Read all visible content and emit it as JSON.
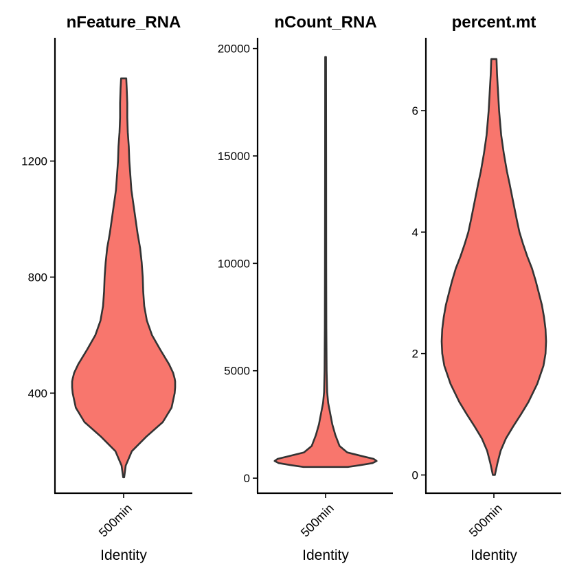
{
  "chart_data": [
    {
      "type": "violin",
      "title": "nFeature_RNA",
      "xlabel": "Identity",
      "ylabel": "",
      "categories": [
        "500min"
      ],
      "ylim": [
        55,
        1625
      ],
      "yticks": [
        400,
        800,
        1200
      ],
      "tick_labels": [
        "400",
        "800",
        "1200"
      ],
      "fill_color": "#F8766D",
      "outline_color": "#333333",
      "density": {
        "y": [
          110,
          150,
          200,
          250,
          300,
          350,
          400,
          420,
          440,
          450,
          470,
          500,
          550,
          600,
          650,
          700,
          750,
          800,
          850,
          900,
          950,
          1000,
          1050,
          1100,
          1150,
          1200,
          1250,
          1300,
          1350,
          1400,
          1450,
          1485
        ],
        "half_width": [
          0.01,
          0.04,
          0.16,
          0.44,
          0.76,
          0.93,
          0.99,
          1.0,
          1.0,
          0.99,
          0.96,
          0.88,
          0.71,
          0.55,
          0.45,
          0.4,
          0.38,
          0.37,
          0.35,
          0.32,
          0.27,
          0.23,
          0.19,
          0.15,
          0.13,
          0.11,
          0.1,
          0.08,
          0.07,
          0.07,
          0.06,
          0.05
        ]
      }
    },
    {
      "type": "violin",
      "title": "nCount_RNA",
      "xlabel": "Identity",
      "ylabel": "",
      "categories": [
        "500min"
      ],
      "ylim": [
        -700,
        20500
      ],
      "yticks": [
        0,
        5000,
        10000,
        15000,
        20000
      ],
      "tick_labels": [
        "0",
        "5000",
        "10000",
        "15000",
        "20000"
      ],
      "fill_color": "#F8766D",
      "outline_color": "#333333",
      "density": {
        "y": [
          520,
          600,
          700,
          800,
          900,
          1000,
          1200,
          1500,
          2000,
          2500,
          3000,
          3500,
          4000,
          5000,
          7000,
          10000,
          15000,
          19600
        ],
        "half_width": [
          0.43,
          0.66,
          0.91,
          0.99,
          0.93,
          0.75,
          0.42,
          0.27,
          0.19,
          0.13,
          0.09,
          0.05,
          0.03,
          0.02,
          0.015,
          0.012,
          0.01,
          0.008
        ]
      }
    },
    {
      "type": "violin",
      "title": "percent.mt",
      "xlabel": "Identity",
      "ylabel": "",
      "categories": [
        "500min"
      ],
      "ylim": [
        -0.3,
        7.2
      ],
      "yticks": [
        0,
        2,
        4,
        6
      ],
      "tick_labels": [
        "0",
        "2",
        "4",
        "6"
      ],
      "fill_color": "#F8766D",
      "outline_color": "#333333",
      "density": {
        "y": [
          0.0,
          0.2,
          0.4,
          0.6,
          0.8,
          1.0,
          1.2,
          1.5,
          1.8,
          2.0,
          2.2,
          2.4,
          2.6,
          2.8,
          3.0,
          3.2,
          3.4,
          3.6,
          3.8,
          4.0,
          4.2,
          4.5,
          4.8,
          5.0,
          5.3,
          5.6,
          6.0,
          6.3,
          6.6,
          6.85
        ],
        "half_width": [
          0.02,
          0.07,
          0.13,
          0.23,
          0.37,
          0.52,
          0.66,
          0.83,
          0.95,
          0.99,
          1.0,
          0.99,
          0.96,
          0.92,
          0.86,
          0.8,
          0.73,
          0.64,
          0.56,
          0.49,
          0.44,
          0.37,
          0.3,
          0.25,
          0.19,
          0.14,
          0.1,
          0.08,
          0.06,
          0.05
        ]
      }
    }
  ]
}
